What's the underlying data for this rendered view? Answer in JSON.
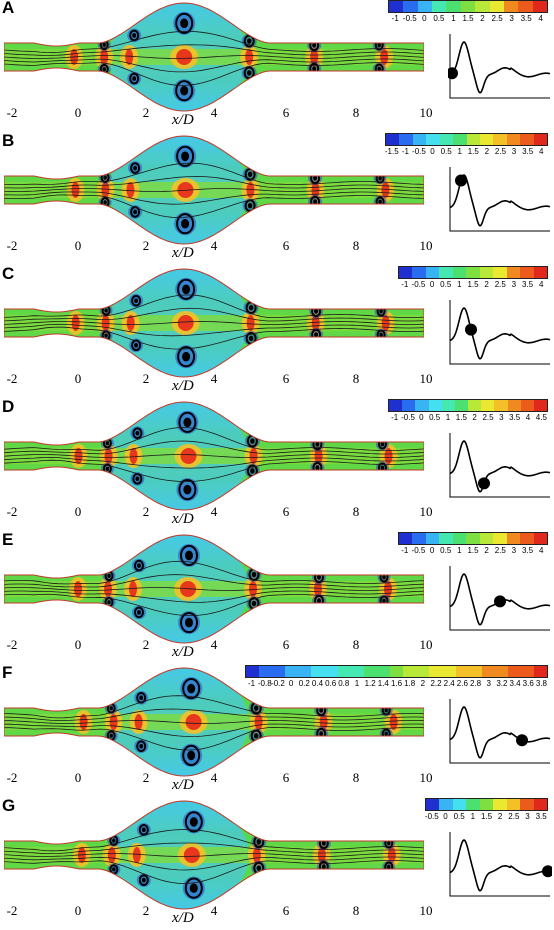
{
  "figure": {
    "xlabel": "x/D",
    "x_ticks": [
      "-2",
      "0",
      "2",
      "4",
      "6",
      "8",
      "10"
    ],
    "panels": [
      {
        "label": "A",
        "colorbar": [
          "-1",
          "-0.5",
          "0",
          "0.5",
          "1",
          "1.5",
          "2",
          "2.5",
          "3",
          "3.5",
          "4"
        ],
        "phase": 0.02
      },
      {
        "label": "B",
        "colorbar": [
          "-1.5",
          "-1",
          "-0.5",
          "0",
          "0.5",
          "1",
          "1.5",
          "2",
          "2.5",
          "3",
          "3.5",
          "4"
        ],
        "phase": 0.11
      },
      {
        "label": "C",
        "colorbar": [
          "-1",
          "-0.5",
          "0",
          "0.5",
          "1",
          "1.5",
          "2",
          "2.5",
          "3",
          "3.5",
          "4"
        ],
        "phase": 0.21
      },
      {
        "label": "D",
        "colorbar": [
          "-1",
          "-0.5",
          "0",
          "0.5",
          "1",
          "1.5",
          "2",
          "2.5",
          "3",
          "3.5",
          "4",
          "4.5"
        ],
        "phase": 0.34
      },
      {
        "label": "E",
        "colorbar": [
          "-1",
          "-0.5",
          "0",
          "0.5",
          "1",
          "1.5",
          "2",
          "2.5",
          "3",
          "3.5",
          "4"
        ],
        "phase": 0.5
      },
      {
        "label": "F",
        "colorbar": [
          "-1",
          "-0.8",
          "-0.2",
          "0",
          "0.2",
          "0.4",
          "0.6",
          "0.8",
          "1",
          "1.2",
          "1.4",
          "1.6",
          "1.8",
          "2",
          "2.2",
          "2.4",
          "2.6",
          "2.8",
          "3",
          "3.2",
          "3.4",
          "3.6",
          "3.8"
        ],
        "phase": 0.72
      },
      {
        "label": "G",
        "colorbar": [
          "-0.5",
          "0",
          "0.5",
          "1",
          "1.5",
          "2",
          "2.5",
          "3",
          "3.5"
        ],
        "phase": 0.98
      }
    ]
  },
  "colors": {
    "low": "#1a2fd8",
    "cyan": "#3fd8f0",
    "green": "#4fd24a",
    "yellow": "#f0e830",
    "orange": "#f08a20",
    "high": "#e8281c"
  }
}
